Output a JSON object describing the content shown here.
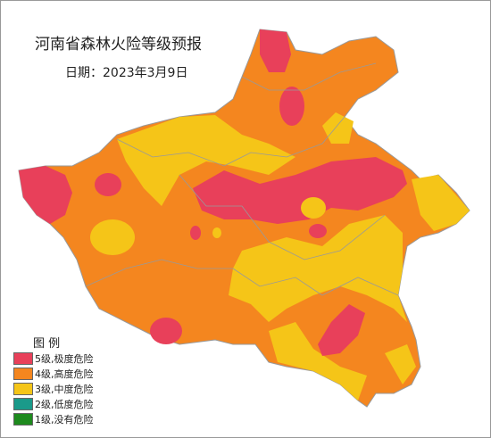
{
  "title": "河南省森林火险等级预报",
  "date": "日期：2023年3月9日",
  "legend": {
    "title": "图 例",
    "items": [
      {
        "label": "5级,极度危险",
        "color": "#e8405a"
      },
      {
        "label": "4级,高度危险",
        "color": "#f4861f"
      },
      {
        "label": "3级,中度危险",
        "color": "#f5c518"
      },
      {
        "label": "2级,低度危险",
        "color": "#1a9a8a"
      },
      {
        "label": "1级,没有危险",
        "color": "#1e8a1e"
      }
    ]
  }
}
